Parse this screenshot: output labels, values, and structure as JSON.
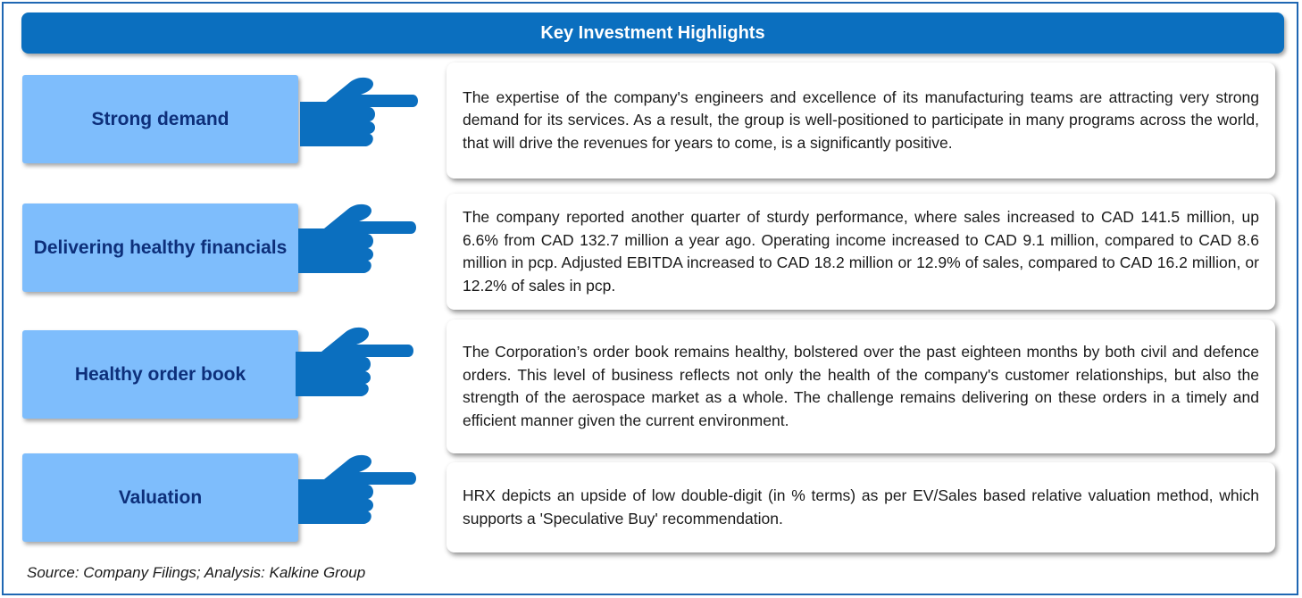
{
  "header": {
    "title": "Key Investment Highlights"
  },
  "highlights": [
    {
      "label": "Strong demand",
      "text": "The expertise of the company's engineers and excellence of its manufacturing teams are attracting very strong demand for its services. As a result, the group is well-positioned to participate in many programs across the world, that will drive the revenues for years to come, is a significantly positive."
    },
    {
      "label": "Delivering healthy financials",
      "text": "The company reported another quarter of sturdy performance, where  sales increased to CAD 141.5 million, up 6.6% from CAD 132.7 million a year ago. Operating income increased to CAD 9.1 million, compared to CAD 8.6 million in pcp. Adjusted EBITDA increased to CAD 18.2 million or 12.9% of sales, compared to CAD 16.2 million, or 12.2% of sales in pcp."
    },
    {
      "label": "Healthy order book",
      "text": "The Corporation’s order book remains healthy, bolstered over the past eighteen months by both civil and defence orders. This level of business reflects not only the health of the company's customer relationships, but also the strength of the aerospace market as a whole. The challenge remains delivering on these orders in a timely and efficient manner given the current environment."
    },
    {
      "label": "Valuation",
      "text": "HRX depicts an upside of low double-digit (in % terms) as per EV/Sales based relative valuation method, which supports a 'Speculative Buy' recommendation."
    }
  ],
  "footer": {
    "source": "Source: Company Filings; Analysis: Kalkine Group"
  },
  "colors": {
    "header_bg": "#0b6fbf",
    "label_bg": "#7ebdfc",
    "label_text": "#0d2f7a",
    "hand": "#0b6fbf",
    "frame": "#1f67b3"
  }
}
